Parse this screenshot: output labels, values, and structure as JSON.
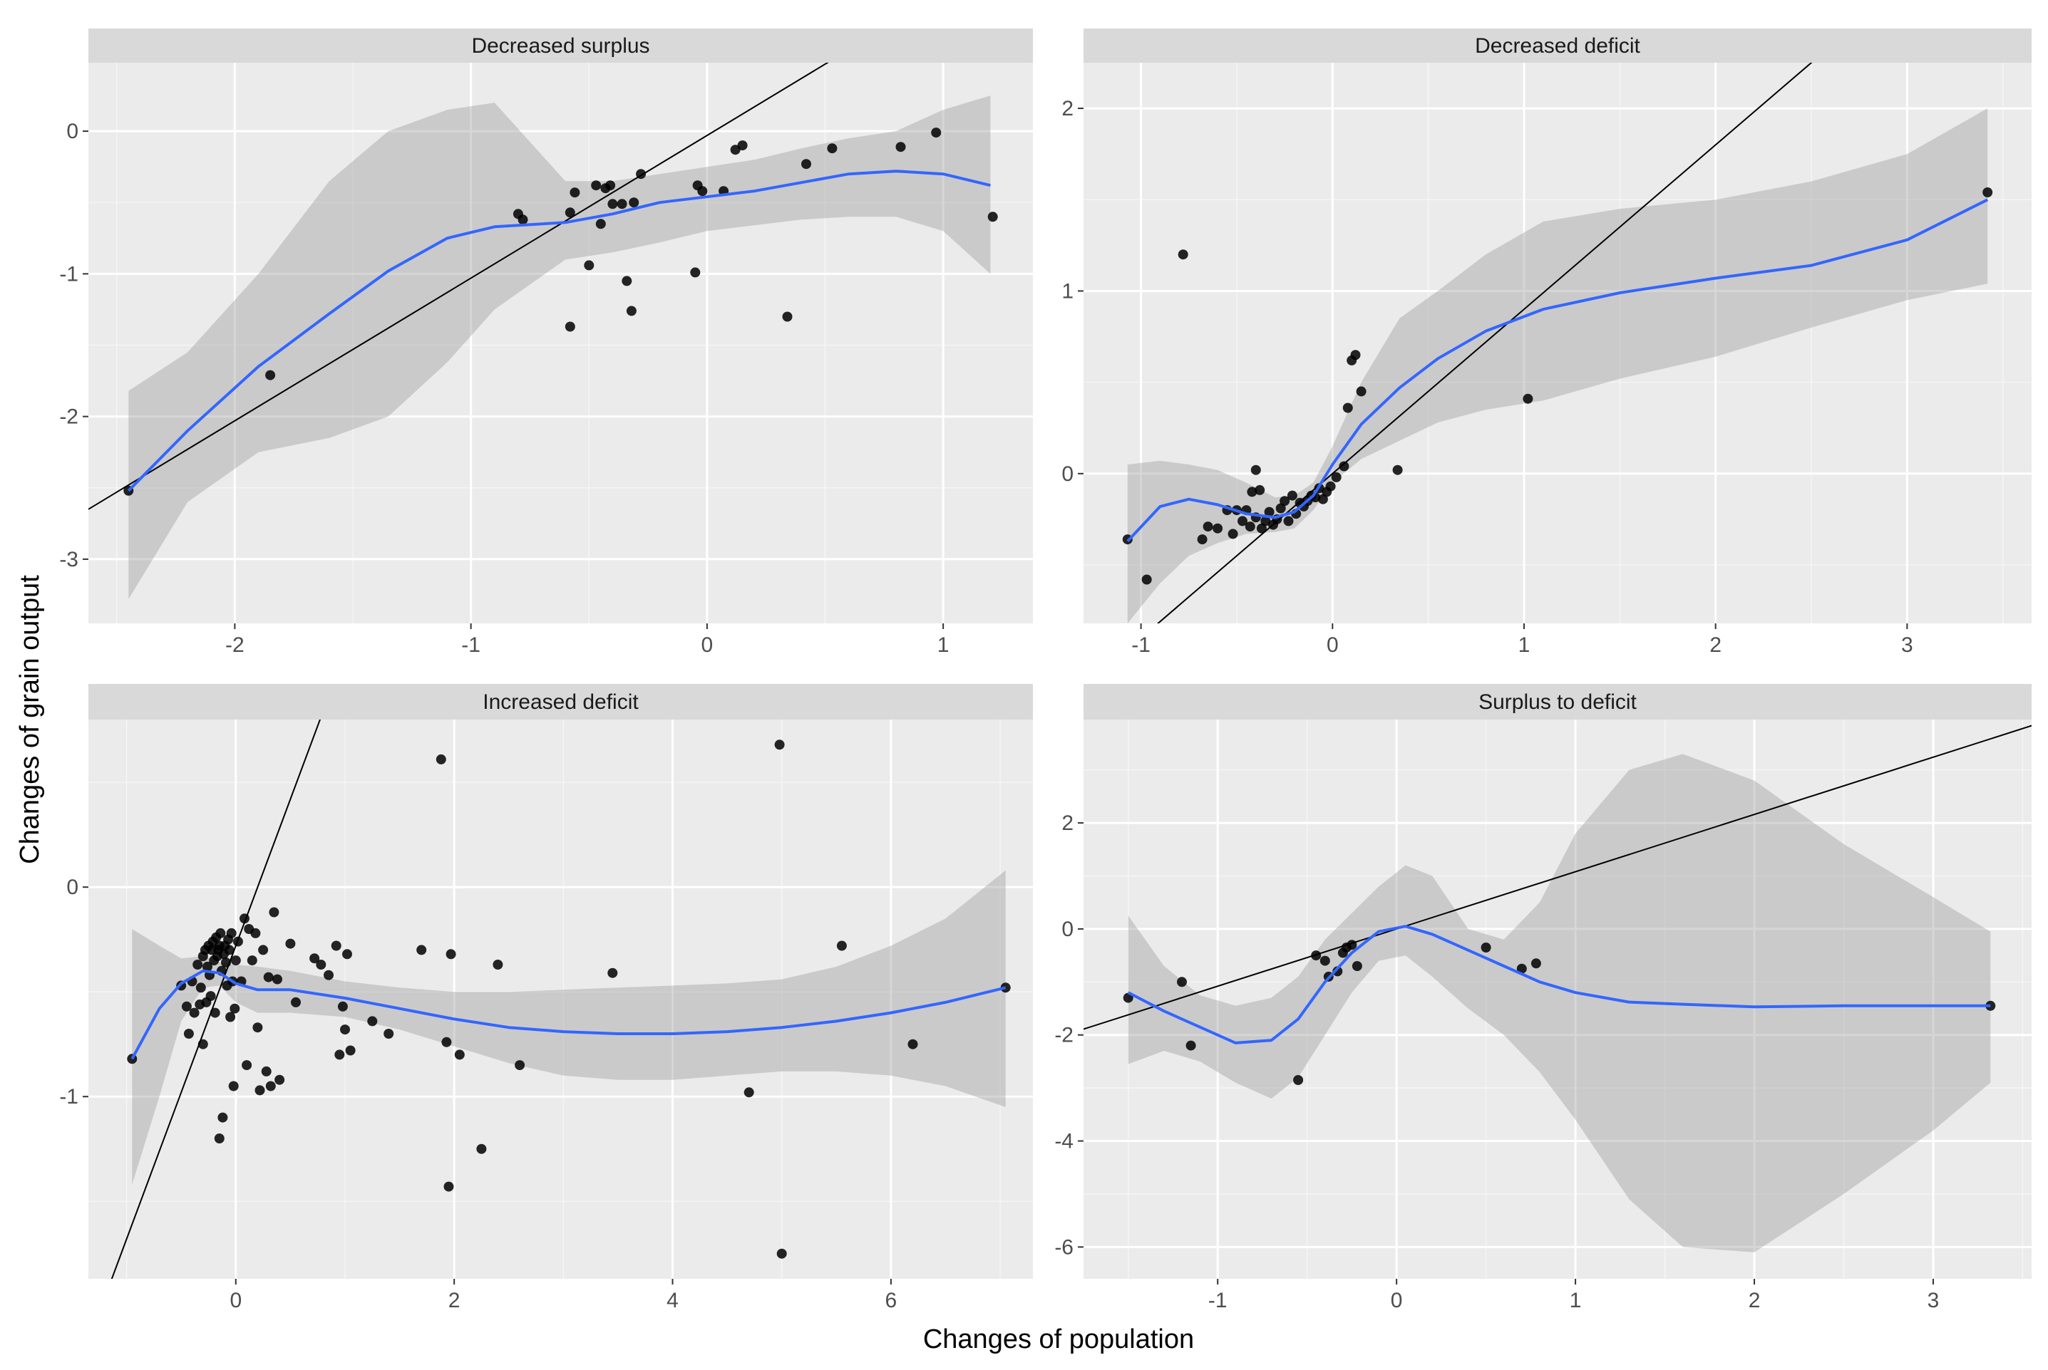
{
  "chart_data": {
    "type": "scatter",
    "xlabel": "Changes of population",
    "ylabel": "Changes of grain output",
    "facets": [
      {
        "title": "Decreased  surplus",
        "xlim": [
          -2.62,
          1.38
        ],
        "ylim": [
          -3.45,
          0.48
        ],
        "xticks": [
          -2,
          -1,
          0,
          1
        ],
        "yticks": [
          -3,
          -2,
          -1,
          0
        ],
        "line": {
          "slope": 1.0,
          "intercept": -0.03
        },
        "smooth": {
          "x": [
            -2.45,
            -2.2,
            -1.9,
            -1.6,
            -1.35,
            -1.1,
            -0.9,
            -0.6,
            -0.4,
            -0.2,
            0.0,
            0.2,
            0.4,
            0.6,
            0.8,
            1.0,
            1.2
          ],
          "y": [
            -2.52,
            -2.1,
            -1.65,
            -1.28,
            -0.98,
            -0.75,
            -0.67,
            -0.64,
            -0.58,
            -0.5,
            -0.46,
            -0.42,
            -0.36,
            -0.3,
            -0.28,
            -0.3,
            -0.38
          ],
          "lower": [
            -3.28,
            -2.6,
            -2.25,
            -2.15,
            -2.0,
            -1.62,
            -1.25,
            -0.9,
            -0.85,
            -0.78,
            -0.7,
            -0.66,
            -0.62,
            -0.6,
            -0.6,
            -0.7,
            -1.0
          ],
          "upper": [
            -1.82,
            -1.55,
            -1.0,
            -0.35,
            0.0,
            0.15,
            0.2,
            -0.35,
            -0.35,
            -0.3,
            -0.25,
            -0.2,
            -0.12,
            -0.05,
            0.0,
            0.15,
            0.25
          ]
        },
        "points": [
          [
            -2.45,
            -2.52
          ],
          [
            -1.85,
            -1.71
          ],
          [
            -0.8,
            -0.58
          ],
          [
            -0.78,
            -0.62
          ],
          [
            -0.58,
            -0.57
          ],
          [
            -0.56,
            -0.43
          ],
          [
            -0.5,
            -0.94
          ],
          [
            -0.47,
            -0.38
          ],
          [
            -0.45,
            -0.65
          ],
          [
            -0.43,
            -0.4
          ],
          [
            -0.41,
            -0.38
          ],
          [
            -0.4,
            -0.51
          ],
          [
            -0.36,
            -0.51
          ],
          [
            -0.34,
            -1.05
          ],
          [
            -0.32,
            -1.26
          ],
          [
            -0.31,
            -0.5
          ],
          [
            -0.28,
            -0.3
          ],
          [
            -0.58,
            -1.37
          ],
          [
            -0.05,
            -0.99
          ],
          [
            -0.04,
            -0.38
          ],
          [
            -0.02,
            -0.42
          ],
          [
            0.07,
            -0.42
          ],
          [
            0.12,
            -0.13
          ],
          [
            0.15,
            -0.1
          ],
          [
            0.34,
            -1.3
          ],
          [
            0.42,
            -0.23
          ],
          [
            0.53,
            -0.12
          ],
          [
            0.82,
            -0.11
          ],
          [
            0.97,
            -0.01
          ],
          [
            1.21,
            -0.6
          ]
        ]
      },
      {
        "title": "Decreased deficit",
        "xlim": [
          -1.3,
          3.65
        ],
        "ylim": [
          -0.82,
          2.25
        ],
        "xticks": [
          -1,
          0,
          1,
          2,
          3
        ],
        "yticks": [
          0,
          1,
          2
        ],
        "line": {
          "slope": 0.9,
          "intercept": 0.0
        },
        "smooth": {
          "x": [
            -1.07,
            -0.9,
            -0.75,
            -0.6,
            -0.45,
            -0.3,
            -0.2,
            -0.1,
            0.0,
            0.15,
            0.35,
            0.55,
            0.8,
            1.1,
            1.5,
            2.0,
            2.5,
            3.0,
            3.42
          ],
          "y": [
            -0.37,
            -0.18,
            -0.14,
            -0.17,
            -0.22,
            -0.24,
            -0.21,
            -0.12,
            0.05,
            0.27,
            0.47,
            0.63,
            0.78,
            0.9,
            0.99,
            1.07,
            1.14,
            1.28,
            1.5
          ],
          "lower": [
            -0.82,
            -0.6,
            -0.45,
            -0.38,
            -0.33,
            -0.32,
            -0.3,
            -0.2,
            -0.05,
            0.08,
            0.18,
            0.28,
            0.35,
            0.4,
            0.52,
            0.64,
            0.8,
            0.95,
            1.04
          ],
          "upper": [
            0.05,
            0.07,
            0.05,
            0.02,
            -0.05,
            -0.13,
            -0.12,
            -0.05,
            0.15,
            0.5,
            0.85,
            1.0,
            1.2,
            1.38,
            1.45,
            1.5,
            1.6,
            1.75,
            2.0
          ]
        },
        "points": [
          [
            -1.07,
            -0.36
          ],
          [
            -0.97,
            -0.58
          ],
          [
            -0.78,
            1.2
          ],
          [
            -0.68,
            -0.36
          ],
          [
            -0.65,
            -0.29
          ],
          [
            -0.6,
            -0.3
          ],
          [
            -0.55,
            -0.2
          ],
          [
            -0.52,
            -0.33
          ],
          [
            -0.5,
            -0.2
          ],
          [
            -0.47,
            -0.26
          ],
          [
            -0.45,
            -0.2
          ],
          [
            -0.43,
            -0.29
          ],
          [
            -0.42,
            -0.1
          ],
          [
            -0.4,
            -0.24
          ],
          [
            -0.4,
            0.02
          ],
          [
            -0.38,
            -0.09
          ],
          [
            -0.37,
            -0.3
          ],
          [
            -0.35,
            -0.26
          ],
          [
            -0.33,
            -0.21
          ],
          [
            -0.31,
            -0.28
          ],
          [
            -0.29,
            -0.25
          ],
          [
            -0.27,
            -0.19
          ],
          [
            -0.25,
            -0.15
          ],
          [
            -0.23,
            -0.26
          ],
          [
            -0.21,
            -0.12
          ],
          [
            -0.19,
            -0.22
          ],
          [
            -0.17,
            -0.16
          ],
          [
            -0.15,
            -0.18
          ],
          [
            -0.13,
            -0.15
          ],
          [
            -0.11,
            -0.12
          ],
          [
            -0.09,
            -0.13
          ],
          [
            -0.07,
            -0.08
          ],
          [
            -0.05,
            -0.14
          ],
          [
            -0.03,
            -0.1
          ],
          [
            -0.01,
            -0.07
          ],
          [
            0.02,
            -0.02
          ],
          [
            0.06,
            0.04
          ],
          [
            0.08,
            0.36
          ],
          [
            0.1,
            0.62
          ],
          [
            0.12,
            0.65
          ],
          [
            0.15,
            0.45
          ],
          [
            0.34,
            0.02
          ],
          [
            1.02,
            0.41
          ],
          [
            3.42,
            1.54
          ]
        ]
      },
      {
        "title": "Increased deficit",
        "xlim": [
          -1.35,
          7.3
        ],
        "ylim": [
          -1.87,
          0.8
        ],
        "xticks": [
          0,
          2,
          4,
          6
        ],
        "yticks": [
          -1,
          0
        ],
        "line": {
          "slope": 1.4,
          "intercept": -0.28
        },
        "smooth": {
          "x": [
            -0.95,
            -0.7,
            -0.5,
            -0.3,
            -0.15,
            0.0,
            0.2,
            0.5,
            1.0,
            1.5,
            2.0,
            2.5,
            3.0,
            3.5,
            4.0,
            4.5,
            5.0,
            5.5,
            6.0,
            6.5,
            7.05
          ],
          "y": [
            -0.82,
            -0.58,
            -0.46,
            -0.4,
            -0.41,
            -0.46,
            -0.49,
            -0.49,
            -0.53,
            -0.58,
            -0.63,
            -0.67,
            -0.69,
            -0.7,
            -0.7,
            -0.69,
            -0.67,
            -0.64,
            -0.6,
            -0.55,
            -0.48
          ],
          "lower": [
            -1.42,
            -1.0,
            -0.64,
            -0.48,
            -0.47,
            -0.55,
            -0.6,
            -0.6,
            -0.62,
            -0.68,
            -0.76,
            -0.84,
            -0.9,
            -0.92,
            -0.92,
            -0.9,
            -0.88,
            -0.88,
            -0.9,
            -0.95,
            -1.05
          ],
          "upper": [
            -0.2,
            -0.28,
            -0.34,
            -0.33,
            -0.36,
            -0.37,
            -0.38,
            -0.4,
            -0.45,
            -0.48,
            -0.5,
            -0.5,
            -0.49,
            -0.48,
            -0.47,
            -0.46,
            -0.44,
            -0.38,
            -0.28,
            -0.15,
            0.08
          ]
        },
        "points": [
          [
            -0.95,
            -0.82
          ],
          [
            -0.5,
            -0.47
          ],
          [
            -0.45,
            -0.57
          ],
          [
            -0.43,
            -0.7
          ],
          [
            -0.4,
            -0.45
          ],
          [
            -0.38,
            -0.6
          ],
          [
            -0.35,
            -0.37
          ],
          [
            -0.33,
            -0.56
          ],
          [
            -0.32,
            -0.48
          ],
          [
            -0.3,
            -0.33
          ],
          [
            -0.3,
            -0.75
          ],
          [
            -0.28,
            -0.3
          ],
          [
            -0.27,
            -0.55
          ],
          [
            -0.26,
            -0.38
          ],
          [
            -0.25,
            -0.28
          ],
          [
            -0.24,
            -0.42
          ],
          [
            -0.23,
            -0.52
          ],
          [
            -0.22,
            -0.3
          ],
          [
            -0.21,
            -0.26
          ],
          [
            -0.2,
            -0.35
          ],
          [
            -0.19,
            -0.6
          ],
          [
            -0.18,
            -0.24
          ],
          [
            -0.17,
            -0.33
          ],
          [
            -0.16,
            -0.3
          ],
          [
            -0.15,
            -0.28
          ],
          [
            -0.15,
            -1.2
          ],
          [
            -0.14,
            -0.22
          ],
          [
            -0.13,
            -0.4
          ],
          [
            -0.12,
            -1.1
          ],
          [
            -0.11,
            -0.32
          ],
          [
            -0.1,
            -0.28
          ],
          [
            -0.09,
            -0.36
          ],
          [
            -0.08,
            -0.47
          ],
          [
            -0.07,
            -0.25
          ],
          [
            -0.06,
            -0.3
          ],
          [
            -0.05,
            -0.62
          ],
          [
            -0.04,
            -0.22
          ],
          [
            -0.03,
            -0.45
          ],
          [
            -0.02,
            -0.95
          ],
          [
            -0.01,
            -0.58
          ],
          [
            0.0,
            -0.35
          ],
          [
            0.02,
            -0.26
          ],
          [
            0.05,
            -0.45
          ],
          [
            0.08,
            -0.15
          ],
          [
            0.1,
            -0.85
          ],
          [
            0.12,
            -0.2
          ],
          [
            0.15,
            -0.35
          ],
          [
            0.18,
            -0.22
          ],
          [
            0.2,
            -0.67
          ],
          [
            0.22,
            -0.97
          ],
          [
            0.25,
            -0.3
          ],
          [
            0.28,
            -0.88
          ],
          [
            0.3,
            -0.43
          ],
          [
            0.32,
            -0.95
          ],
          [
            0.35,
            -0.12
          ],
          [
            0.38,
            -0.44
          ],
          [
            0.4,
            -0.92
          ],
          [
            0.5,
            -0.27
          ],
          [
            0.55,
            -0.55
          ],
          [
            0.72,
            -0.34
          ],
          [
            0.78,
            -0.37
          ],
          [
            0.85,
            -0.42
          ],
          [
            0.92,
            -0.28
          ],
          [
            0.95,
            -0.8
          ],
          [
            0.98,
            -0.57
          ],
          [
            1.0,
            -0.68
          ],
          [
            1.02,
            -0.32
          ],
          [
            1.05,
            -0.78
          ],
          [
            1.25,
            -0.64
          ],
          [
            1.4,
            -0.7
          ],
          [
            1.7,
            -0.3
          ],
          [
            1.88,
            0.61
          ],
          [
            1.93,
            -0.74
          ],
          [
            1.95,
            -1.43
          ],
          [
            1.97,
            -0.32
          ],
          [
            2.05,
            -0.8
          ],
          [
            2.25,
            -1.25
          ],
          [
            2.4,
            -0.37
          ],
          [
            2.6,
            -0.85
          ],
          [
            3.45,
            -0.41
          ],
          [
            4.7,
            -0.98
          ],
          [
            4.98,
            0.68
          ],
          [
            5.0,
            -1.75
          ],
          [
            5.55,
            -0.28
          ],
          [
            6.2,
            -0.75
          ],
          [
            7.05,
            -0.48
          ]
        ]
      },
      {
        "title": "Surplus to deficit",
        "xlim": [
          -1.75,
          3.55
        ],
        "ylim": [
          -6.6,
          3.95
        ],
        "xticks": [
          -1,
          0,
          1,
          2,
          3
        ],
        "yticks": [
          -6,
          -4,
          -2,
          0,
          2
        ],
        "line": {
          "slope": 1.08,
          "intercept": 0.0
        },
        "smooth": {
          "x": [
            -1.5,
            -1.3,
            -1.1,
            -0.9,
            -0.7,
            -0.55,
            -0.4,
            -0.25,
            -0.1,
            0.05,
            0.2,
            0.4,
            0.6,
            0.8,
            1.0,
            1.3,
            1.6,
            2.0,
            2.5,
            3.0,
            3.32
          ],
          "y": [
            -1.2,
            -1.55,
            -1.85,
            -2.15,
            -2.1,
            -1.7,
            -1.0,
            -0.45,
            -0.05,
            0.05,
            -0.1,
            -0.4,
            -0.7,
            -1.0,
            -1.2,
            -1.38,
            -1.42,
            -1.47,
            -1.45,
            -1.45,
            -1.45
          ],
          "lower": [
            -2.55,
            -2.3,
            -2.5,
            -2.9,
            -3.2,
            -2.8,
            -2.0,
            -1.2,
            -0.6,
            -0.5,
            -0.9,
            -1.5,
            -2.0,
            -2.7,
            -3.6,
            -5.1,
            -6.0,
            -6.1,
            -5.0,
            -3.8,
            -2.9
          ],
          "upper": [
            0.25,
            -0.7,
            -1.25,
            -1.45,
            -1.3,
            -0.9,
            -0.2,
            0.3,
            0.8,
            1.2,
            1.0,
            0.0,
            -0.2,
            0.5,
            1.8,
            3.0,
            3.3,
            2.8,
            1.6,
            0.6,
            -0.05
          ]
        },
        "points": [
          [
            -1.5,
            -1.3
          ],
          [
            -1.2,
            -1.0
          ],
          [
            -1.15,
            -2.2
          ],
          [
            -0.55,
            -2.85
          ],
          [
            -0.45,
            -0.5
          ],
          [
            -0.4,
            -0.6
          ],
          [
            -0.38,
            -0.9
          ],
          [
            -0.33,
            -0.8
          ],
          [
            -0.3,
            -0.45
          ],
          [
            -0.28,
            -0.35
          ],
          [
            -0.25,
            -0.3
          ],
          [
            -0.22,
            -0.7
          ],
          [
            0.5,
            -0.35
          ],
          [
            0.7,
            -0.75
          ],
          [
            0.78,
            -0.65
          ],
          [
            3.32,
            -1.45
          ]
        ]
      }
    ]
  }
}
